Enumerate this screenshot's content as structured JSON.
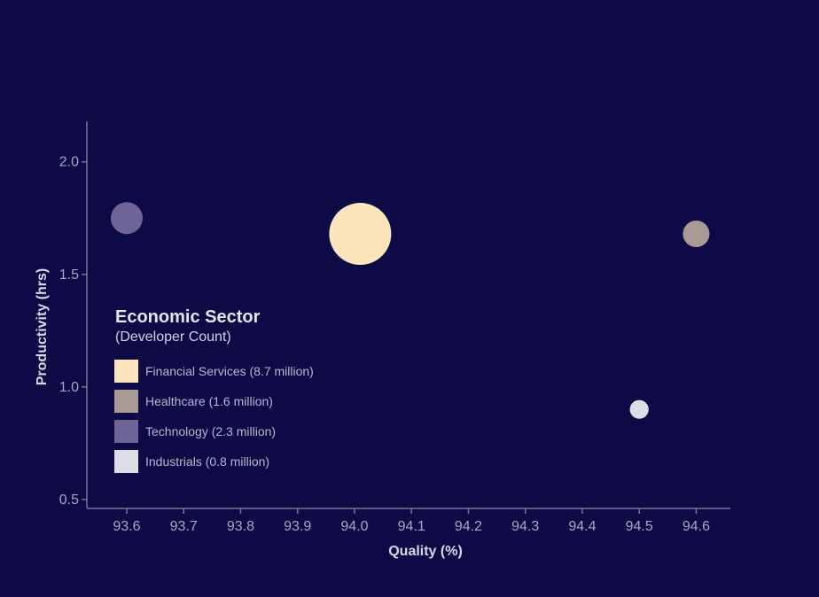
{
  "chart_data": {
    "type": "scatter",
    "variant": "bubble",
    "xlabel": "Quality (%)",
    "ylabel": "Productivity (hrs)",
    "xlim": [
      93.53,
      94.66
    ],
    "ylim": [
      0.46,
      2.18
    ],
    "x_ticks": [
      93.6,
      93.7,
      93.8,
      93.9,
      94.0,
      94.1,
      94.2,
      94.3,
      94.4,
      94.5,
      94.6
    ],
    "y_ticks": [
      0.5,
      1.0,
      1.5,
      2.0
    ],
    "grid": false,
    "legend": {
      "title": "Economic Sector",
      "subtitle": "(Developer Count)",
      "position": "middle-left"
    },
    "series": [
      {
        "name": "Financial Services (8.7 million)",
        "size": 8.7,
        "color": "#fbe5bd",
        "x": [
          94.01
        ],
        "y": [
          1.68
        ]
      },
      {
        "name": "Healthcare (1.6 million)",
        "size": 1.6,
        "color": "#a89a94",
        "x": [
          94.6
        ],
        "y": [
          1.68
        ]
      },
      {
        "name": "Technology (2.3 million)",
        "size": 2.3,
        "color": "#6f6498",
        "x": [
          93.6
        ],
        "y": [
          1.75
        ]
      },
      {
        "name": "Industrials (0.8 million)",
        "size": 0.8,
        "color": "#dcdde6",
        "x": [
          94.5
        ],
        "y": [
          0.9
        ]
      }
    ]
  }
}
